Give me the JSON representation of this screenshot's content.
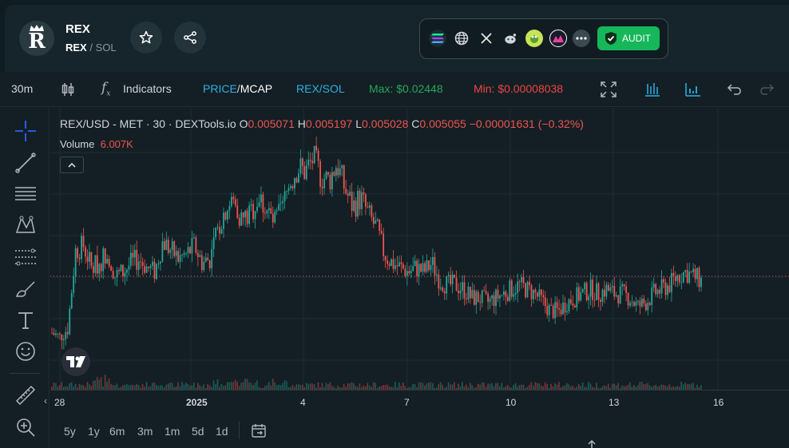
{
  "header": {
    "logo_letter": "R",
    "token_name": "REX",
    "pair_base": "REX",
    "pair_sep": "/",
    "pair_quote": "SOL",
    "audit_label": "AUDIT"
  },
  "toolbar": {
    "interval": "30m",
    "indicators_label": "Indicators",
    "price_label": "PRICE",
    "mcap_label": "MCAP",
    "slash": "/",
    "pair_toggle": "REX/SOL",
    "max_label": "Max: $0.02448",
    "min_label": "Min: $0.00008038"
  },
  "legend": {
    "symbol": "REX/USD - MET · 30 · DEXTools.io",
    "o_key": "O",
    "o_val": "0.005071",
    "h_key": "H",
    "h_val": "0.005197",
    "l_key": "L",
    "l_val": "0.005028",
    "c_key": "C",
    "c_val": "0.005055",
    "change": "−0.00001631 (−0.32%)",
    "volume_label": "Volume",
    "volume_val": "6.007K"
  },
  "xaxis": {
    "labels": [
      "28",
      "2025",
      "4",
      "7",
      "10",
      "13",
      "16"
    ]
  },
  "ranges": [
    "5y",
    "1y",
    "6m",
    "3m",
    "1m",
    "5d",
    "1d"
  ],
  "colors": {
    "up": "#26a69a",
    "down": "#ef5350",
    "accent": "#2962ff",
    "audit": "#16b65a",
    "max": "#26a65a",
    "min": "#ef4444"
  },
  "chart_data": {
    "type": "candlestick",
    "x_ticks": [
      "28",
      "2025",
      "4",
      "7",
      "10",
      "13",
      "16"
    ],
    "close_path": [
      0.0042,
      0.0041,
      0.0043,
      0.0061,
      0.0062,
      0.0057,
      0.0058,
      0.0061,
      0.0055,
      0.0056,
      0.0058,
      0.0059,
      0.0057,
      0.0056,
      0.0063,
      0.0061,
      0.0059,
      0.006,
      0.0062,
      0.0058,
      0.0059,
      0.0066,
      0.0071,
      0.0072,
      0.0068,
      0.0069,
      0.0073,
      0.0071,
      0.0067,
      0.007,
      0.0076,
      0.008,
      0.0079,
      0.0082,
      0.0078,
      0.0077,
      0.0081,
      0.0075,
      0.0071,
      0.0073,
      0.0069,
      0.0066,
      0.006,
      0.0058,
      0.0057,
      0.0056,
      0.0057,
      0.0056,
      0.0058,
      0.0054,
      0.0053,
      0.0053,
      0.0052,
      0.005,
      0.005,
      0.0049,
      0.005,
      0.0051,
      0.0052,
      0.0053,
      0.0052,
      0.0051,
      0.0049,
      0.0047,
      0.0047,
      0.0049,
      0.005,
      0.0051,
      0.0052,
      0.0051,
      0.0052,
      0.0051,
      0.0051,
      0.005,
      0.0048,
      0.0049,
      0.0051,
      0.0052,
      0.0053,
      0.0055,
      0.0056,
      0.0055,
      0.0054
    ],
    "price_line": 0.0055
  }
}
